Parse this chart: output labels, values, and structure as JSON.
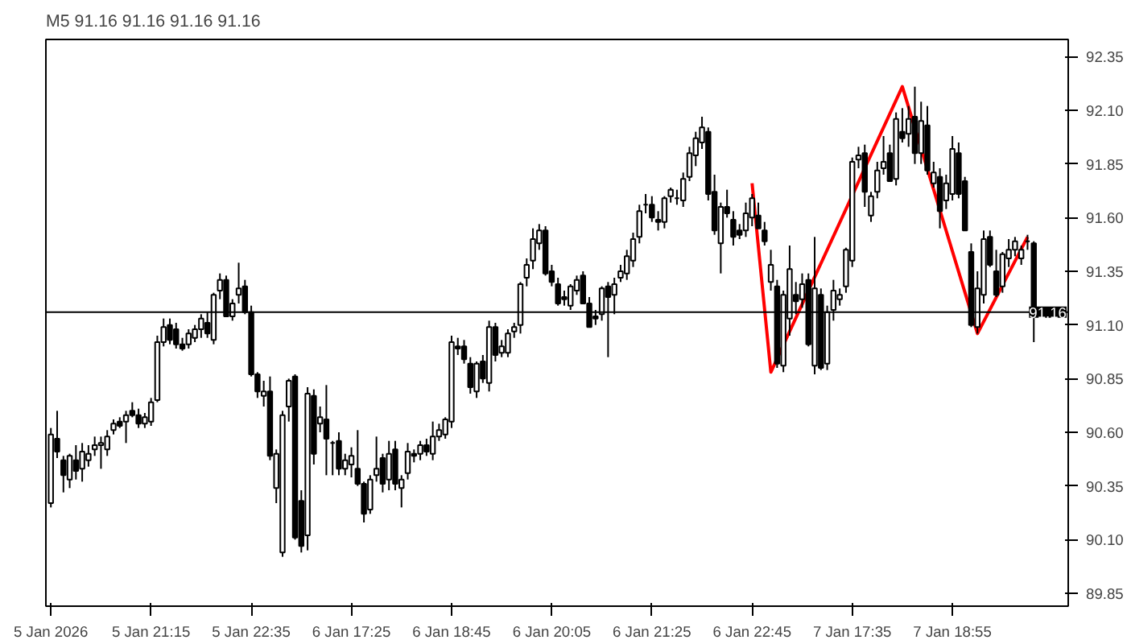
{
  "chart_data": {
    "type": "candlestick",
    "title": "M5  91.16 91.16 91.16 91.16",
    "categories": [
      "5 Jan 2026",
      null,
      null,
      null,
      null,
      null,
      null,
      null,
      null,
      null,
      null,
      null,
      null,
      null,
      null,
      null,
      "5 Jan 21:15",
      null,
      null,
      null,
      null,
      null,
      null,
      null,
      null,
      null,
      null,
      null,
      null,
      null,
      null,
      null,
      "5 Jan 22:35",
      null,
      null,
      null,
      null,
      null,
      null,
      null,
      null,
      null,
      null,
      null,
      null,
      null,
      null,
      null,
      "6 Jan 17:25",
      null,
      null,
      null,
      null,
      null,
      null,
      null,
      null,
      null,
      null,
      null,
      null,
      null,
      null,
      null,
      "6 Jan 18:45",
      null,
      null,
      null,
      null,
      null,
      null,
      null,
      null,
      null,
      null,
      null,
      null,
      null,
      null,
      null,
      "6 Jan 20:05",
      null,
      null,
      null,
      null,
      null,
      null,
      null,
      null,
      null,
      null,
      null,
      null,
      null,
      null,
      null,
      "6 Jan 21:25",
      null,
      null,
      null,
      null,
      null,
      null,
      null,
      null,
      null,
      null,
      null,
      null,
      null,
      null,
      null,
      "6 Jan 22:45",
      null,
      null,
      null,
      null,
      null,
      null,
      null,
      null,
      null,
      null,
      null,
      null,
      null,
      null,
      null,
      "7 Jan 17:35",
      null,
      null,
      null,
      null,
      null,
      null,
      null,
      null,
      null,
      null,
      null,
      null,
      null,
      null,
      null,
      "7 Jan 18:55",
      null,
      null,
      null,
      null,
      null,
      null,
      null,
      null,
      null,
      null,
      null,
      null,
      null
    ],
    "ohlc": [
      [
        90.27,
        90.62,
        90.25,
        90.59
      ],
      [
        90.57,
        90.7,
        90.48,
        90.51
      ],
      [
        90.47,
        90.49,
        90.32,
        90.4
      ],
      [
        90.38,
        90.5,
        90.34,
        90.49
      ],
      [
        90.47,
        90.54,
        90.38,
        90.42
      ],
      [
        90.43,
        90.55,
        90.37,
        90.51
      ],
      [
        90.47,
        90.54,
        90.44,
        90.5
      ],
      [
        90.52,
        90.58,
        90.49,
        90.54
      ],
      [
        90.54,
        90.58,
        90.43,
        90.55
      ],
      [
        90.52,
        90.61,
        90.49,
        90.58
      ],
      [
        90.61,
        90.66,
        90.59,
        90.64
      ],
      [
        90.65,
        90.67,
        90.62,
        90.63
      ],
      [
        90.65,
        90.7,
        90.55,
        90.68
      ],
      [
        90.7,
        90.74,
        90.67,
        90.68
      ],
      [
        90.68,
        90.71,
        90.62,
        90.64
      ],
      [
        90.64,
        90.69,
        90.62,
        90.67
      ],
      [
        90.65,
        90.76,
        90.63,
        90.74
      ],
      [
        90.75,
        91.05,
        90.74,
        91.02
      ],
      [
        91.02,
        91.13,
        91.0,
        91.09
      ],
      [
        91.1,
        91.13,
        91.01,
        91.03
      ],
      [
        91.08,
        91.11,
        90.99,
        91.01
      ],
      [
        91.01,
        91.04,
        90.98,
        90.99
      ],
      [
        91.01,
        91.08,
        90.99,
        91.06
      ],
      [
        91.04,
        91.1,
        91.02,
        91.08
      ],
      [
        91.08,
        91.15,
        91.04,
        91.13
      ],
      [
        91.11,
        91.16,
        91.04,
        91.06
      ],
      [
        91.03,
        91.25,
        91.01,
        91.24
      ],
      [
        91.26,
        91.34,
        91.22,
        91.31
      ],
      [
        91.31,
        91.33,
        91.14,
        91.14
      ],
      [
        91.14,
        91.22,
        91.12,
        91.2
      ],
      [
        91.24,
        91.39,
        91.2,
        91.27
      ],
      [
        91.28,
        91.31,
        91.15,
        91.16
      ],
      [
        91.16,
        91.19,
        90.86,
        90.87
      ],
      [
        90.87,
        90.88,
        90.76,
        90.79
      ],
      [
        90.77,
        90.84,
        90.72,
        90.79
      ],
      [
        90.79,
        90.86,
        90.47,
        90.49
      ],
      [
        90.34,
        90.52,
        90.27,
        90.5
      ],
      [
        90.04,
        90.7,
        90.02,
        90.68
      ],
      [
        90.72,
        90.85,
        90.65,
        90.84
      ],
      [
        90.86,
        90.87,
        90.1,
        90.11
      ],
      [
        90.28,
        90.33,
        90.04,
        90.07
      ],
      [
        90.12,
        90.81,
        90.05,
        90.78
      ],
      [
        90.77,
        90.8,
        90.45,
        90.5
      ],
      [
        90.64,
        90.72,
        90.6,
        90.67
      ],
      [
        90.66,
        90.82,
        90.4,
        90.57
      ],
      [
        90.55,
        90.56,
        90.4,
        90.55
      ],
      [
        90.56,
        90.6,
        90.4,
        90.43
      ],
      [
        90.43,
        90.5,
        90.4,
        90.47
      ],
      [
        90.45,
        90.53,
        90.39,
        90.49
      ],
      [
        90.43,
        90.61,
        90.35,
        90.36
      ],
      [
        90.36,
        90.37,
        90.18,
        90.22
      ],
      [
        90.24,
        90.4,
        90.22,
        90.38
      ],
      [
        90.4,
        90.58,
        90.37,
        90.43
      ],
      [
        90.48,
        90.5,
        90.32,
        90.36
      ],
      [
        90.38,
        90.56,
        90.33,
        90.5
      ],
      [
        90.52,
        90.56,
        90.33,
        90.36
      ],
      [
        90.34,
        90.4,
        90.25,
        90.38
      ],
      [
        90.41,
        90.55,
        90.38,
        90.51
      ],
      [
        90.5,
        90.52,
        90.46,
        90.49
      ],
      [
        90.5,
        90.56,
        90.47,
        90.54
      ],
      [
        90.54,
        90.57,
        90.49,
        90.51
      ],
      [
        90.5,
        90.65,
        90.47,
        90.58
      ],
      [
        90.58,
        90.64,
        90.56,
        90.61
      ],
      [
        90.59,
        90.67,
        90.57,
        90.66
      ],
      [
        90.65,
        91.05,
        90.62,
        91.02
      ],
      [
        91.0,
        91.04,
        90.96,
        90.99
      ],
      [
        91.0,
        91.03,
        90.92,
        90.94
      ],
      [
        90.92,
        90.95,
        90.78,
        90.81
      ],
      [
        90.79,
        90.93,
        90.76,
        90.92
      ],
      [
        90.93,
        90.96,
        90.83,
        90.85
      ],
      [
        90.83,
        91.12,
        90.79,
        91.09
      ],
      [
        91.09,
        91.11,
        90.93,
        90.96
      ],
      [
        90.97,
        91.03,
        90.95,
        91.0
      ],
      [
        90.97,
        91.08,
        90.95,
        91.06
      ],
      [
        91.07,
        91.11,
        91.04,
        91.09
      ],
      [
        91.1,
        91.3,
        91.06,
        91.29
      ],
      [
        91.32,
        91.41,
        91.28,
        91.38
      ],
      [
        91.4,
        91.55,
        91.36,
        91.5
      ],
      [
        91.48,
        91.57,
        91.45,
        91.54
      ],
      [
        91.54,
        91.56,
        91.33,
        91.34
      ],
      [
        91.35,
        91.38,
        91.28,
        91.3
      ],
      [
        91.29,
        91.32,
        91.19,
        91.2
      ],
      [
        91.23,
        91.26,
        91.19,
        91.22
      ],
      [
        91.19,
        91.29,
        91.17,
        91.28
      ],
      [
        91.26,
        91.33,
        91.24,
        91.31
      ],
      [
        91.33,
        91.35,
        91.2,
        91.2
      ],
      [
        91.2,
        91.23,
        91.09,
        91.09
      ],
      [
        91.14,
        91.17,
        91.1,
        91.13
      ],
      [
        91.15,
        91.28,
        91.12,
        91.27
      ],
      [
        91.28,
        91.3,
        90.95,
        91.23
      ],
      [
        91.24,
        91.32,
        91.15,
        91.29
      ],
      [
        91.32,
        91.38,
        91.3,
        91.35
      ],
      [
        91.34,
        91.45,
        91.31,
        91.42
      ],
      [
        91.4,
        91.53,
        91.37,
        91.5
      ],
      [
        91.51,
        91.66,
        91.48,
        91.63
      ],
      [
        91.66,
        91.71,
        91.62,
        91.66
      ],
      [
        91.66,
        91.7,
        91.58,
        91.6
      ],
      [
        91.59,
        91.63,
        91.54,
        91.58
      ],
      [
        91.58,
        91.7,
        91.55,
        91.69
      ],
      [
        91.7,
        91.74,
        91.67,
        91.73
      ],
      [
        91.69,
        91.73,
        91.66,
        91.69
      ],
      [
        91.68,
        91.81,
        91.65,
        91.78
      ],
      [
        91.79,
        91.93,
        91.77,
        91.9
      ],
      [
        91.89,
        92.0,
        91.84,
        91.97
      ],
      [
        91.95,
        92.07,
        91.92,
        92.02
      ],
      [
        92.0,
        92.02,
        91.68,
        91.71
      ],
      [
        91.72,
        91.8,
        91.52,
        91.54
      ],
      [
        91.48,
        91.67,
        91.34,
        91.65
      ],
      [
        91.65,
        91.73,
        91.6,
        91.62
      ],
      [
        91.59,
        91.63,
        91.47,
        91.51
      ],
      [
        91.54,
        91.57,
        91.5,
        91.52
      ],
      [
        91.54,
        91.67,
        91.51,
        91.62
      ],
      [
        91.6,
        91.71,
        91.56,
        91.69
      ],
      [
        91.61,
        91.67,
        91.55,
        91.55
      ],
      [
        91.54,
        91.58,
        91.47,
        91.49
      ],
      [
        91.3,
        91.45,
        91.26,
        91.38
      ],
      [
        91.28,
        91.31,
        90.9,
        90.92
      ],
      [
        90.91,
        91.26,
        90.88,
        91.24
      ],
      [
        91.13,
        91.47,
        91.05,
        91.36
      ],
      [
        91.24,
        91.3,
        91.15,
        91.21
      ],
      [
        91.22,
        91.34,
        91.18,
        91.29
      ],
      [
        91.31,
        91.34,
        91.0,
        91.01
      ],
      [
        90.91,
        91.51,
        90.87,
        91.27
      ],
      [
        91.24,
        91.27,
        90.89,
        90.9
      ],
      [
        90.92,
        91.19,
        90.89,
        91.16
      ],
      [
        91.17,
        91.31,
        91.12,
        91.26
      ],
      [
        91.22,
        91.27,
        91.19,
        91.24
      ],
      [
        91.28,
        91.46,
        91.25,
        91.45
      ],
      [
        91.4,
        91.88,
        91.37,
        91.86
      ],
      [
        91.87,
        91.93,
        91.83,
        91.89
      ],
      [
        91.9,
        91.94,
        91.65,
        91.72
      ],
      [
        91.61,
        91.72,
        91.58,
        91.7
      ],
      [
        91.72,
        91.86,
        91.69,
        91.82
      ],
      [
        91.83,
        91.98,
        91.8,
        91.86
      ],
      [
        91.9,
        91.94,
        91.77,
        91.77
      ],
      [
        91.78,
        92.09,
        91.75,
        92.06
      ],
      [
        92.0,
        92.11,
        91.95,
        91.97
      ],
      [
        91.99,
        92.12,
        91.93,
        92.06
      ],
      [
        92.07,
        92.21,
        91.85,
        91.9
      ],
      [
        91.9,
        92.14,
        91.85,
        92.05
      ],
      [
        92.03,
        92.12,
        91.8,
        91.82
      ],
      [
        91.76,
        91.86,
        91.74,
        91.81
      ],
      [
        91.79,
        91.83,
        91.55,
        91.63
      ],
      [
        91.68,
        91.8,
        91.64,
        91.76
      ],
      [
        91.71,
        91.98,
        91.68,
        91.92
      ],
      [
        91.9,
        91.95,
        91.69,
        91.71
      ],
      [
        91.77,
        91.79,
        91.54,
        91.54
      ],
      [
        91.44,
        91.48,
        91.09,
        91.1
      ],
      [
        91.09,
        91.35,
        91.06,
        91.27
      ],
      [
        91.24,
        91.54,
        91.2,
        91.5
      ],
      [
        91.51,
        91.54,
        91.37,
        91.38
      ],
      [
        91.35,
        91.45,
        91.23,
        91.24
      ],
      [
        91.28,
        91.44,
        91.25,
        91.43
      ],
      [
        91.41,
        91.5,
        91.37,
        91.45
      ],
      [
        91.45,
        91.51,
        91.42,
        91.49
      ],
      [
        91.41,
        91.47,
        91.38,
        91.45
      ],
      [
        91.49,
        91.52,
        91.45,
        91.49
      ],
      [
        91.48,
        91.49,
        91.02,
        91.16
      ]
    ],
    "series": [
      {
        "type": "line",
        "color": "#ff0000",
        "values": [
          null,
          null,
          null,
          null,
          null,
          null,
          null,
          null,
          null,
          null,
          null,
          null,
          null,
          null,
          null,
          null,
          null,
          null,
          null,
          null,
          null,
          null,
          null,
          null,
          null,
          null,
          null,
          null,
          null,
          null,
          null,
          null,
          null,
          null,
          null,
          null,
          null,
          null,
          null,
          null,
          null,
          null,
          null,
          null,
          null,
          null,
          null,
          null,
          null,
          null,
          null,
          null,
          null,
          null,
          null,
          null,
          null,
          null,
          null,
          null,
          null,
          null,
          null,
          null,
          null,
          null,
          null,
          null,
          null,
          null,
          null,
          null,
          null,
          null,
          null,
          null,
          null,
          null,
          null,
          null,
          null,
          null,
          null,
          null,
          null,
          null,
          null,
          null,
          null,
          null,
          null,
          null,
          null,
          null,
          null,
          null,
          null,
          null,
          null,
          null,
          null,
          null,
          null,
          null,
          null,
          null,
          null,
          null,
          null,
          null,
          null,
          null,
          91.76,
          null,
          null,
          90.88,
          null,
          null,
          null,
          null,
          null,
          null,
          null,
          null,
          null,
          null,
          null,
          null,
          null,
          null,
          null,
          null,
          null,
          null,
          null,
          null,
          92.21,
          null,
          null,
          null,
          null,
          null,
          null,
          null,
          null,
          null,
          null,
          null,
          91.06,
          null,
          null,
          null,
          null,
          null,
          null,
          null,
          91.51,
          null
        ]
      }
    ],
    "ylim": [
      89.79,
      92.43
    ],
    "yticks": [
      89.85,
      {
        "value": 90.1,
        "label": "90.10"
      },
      90.35,
      {
        "value": 90.6,
        "label": "90.60"
      },
      90.85,
      {
        "value": 91.1,
        "label": "91.10"
      },
      91.35,
      {
        "value": 91.6,
        "label": "91.60"
      },
      91.85,
      {
        "value": 92.1,
        "label": "92.10"
      },
      92.35
    ],
    "ref_lines": [
      {
        "axis": "y",
        "value": 91.16,
        "label": "91.16",
        "color": "#000000"
      }
    ],
    "grid": false
  }
}
